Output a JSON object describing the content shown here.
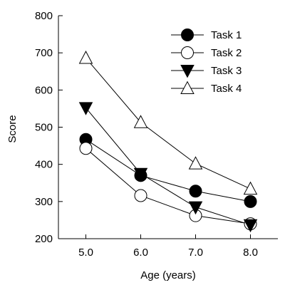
{
  "chart_data": {
    "type": "line",
    "title": "",
    "xlabel": "Age (years)",
    "ylabel": "Score",
    "x": [
      5.0,
      6.0,
      7.0,
      8.0
    ],
    "x_tick_labels": [
      "5.0",
      "6.0",
      "7.0",
      "8.0"
    ],
    "xlim": [
      4.5,
      8.5
    ],
    "ylim": [
      200,
      800
    ],
    "y_ticks": [
      200,
      300,
      400,
      500,
      600,
      700,
      800
    ],
    "y_tick_labels": [
      "200",
      "300",
      "400",
      "500",
      "600",
      "700",
      "800"
    ],
    "grid": false,
    "legend_position": "top-right",
    "series": [
      {
        "name": "Task 1",
        "marker": "filled-circle",
        "values": [
          467,
          370,
          328,
          300
        ]
      },
      {
        "name": "Task 2",
        "marker": "open-circle",
        "values": [
          443,
          316,
          262,
          240
        ]
      },
      {
        "name": "Task 3",
        "marker": "filled-triangle-down",
        "values": [
          552,
          375,
          285,
          237
        ]
      },
      {
        "name": "Task 4",
        "marker": "open-triangle-up",
        "values": [
          686,
          513,
          402,
          334
        ]
      }
    ],
    "colors": {
      "line": "#000000",
      "marker_fill_filled": "#000000",
      "marker_fill_open": "#ffffff"
    }
  }
}
